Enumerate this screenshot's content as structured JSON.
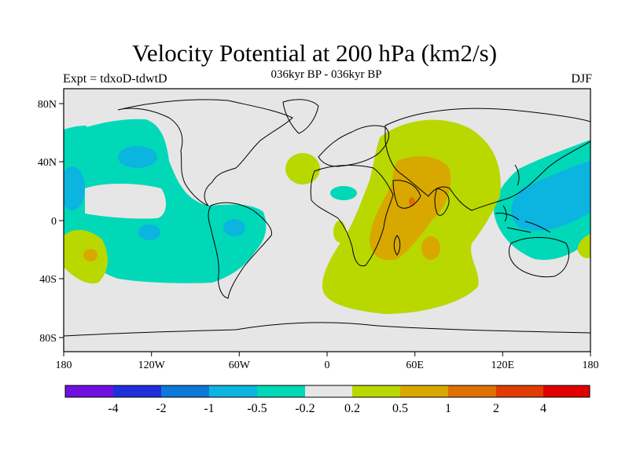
{
  "title": "Velocity Potential at 200 hPa (km2/s)",
  "subtitle": "036kyr BP - 036kyr BP",
  "experiment_label": "Expt = tdxoD-tdwtD",
  "season_label": "DJF",
  "map": {
    "lon_ticks": [
      "180",
      "120W",
      "60W",
      "0",
      "60E",
      "120E",
      "180"
    ],
    "lat_ticks": [
      "80N",
      "40N",
      "0",
      "40S",
      "80S"
    ],
    "background_color": "#e6e6e6",
    "coastline_color": "#000000"
  },
  "colorbar": {
    "colors": [
      "#7010e0",
      "#2030d8",
      "#0c78d8",
      "#0cb4e0",
      "#00d8b8",
      "#e6e6e6",
      "#b8d800",
      "#d8a800",
      "#e07000",
      "#e03c00",
      "#e00000"
    ],
    "labels": [
      "-4",
      "-2",
      "-1",
      "-0.5",
      "-0.2",
      "0.2",
      "0.5",
      "1",
      "2",
      "4"
    ]
  },
  "fields": {
    "pacific_negative": "#00d8b8",
    "pacific_core": "#0cb4e0",
    "africa_positive": "#b8d800",
    "africa_core": "#d8a800",
    "africa_peak": "#e07000"
  }
}
